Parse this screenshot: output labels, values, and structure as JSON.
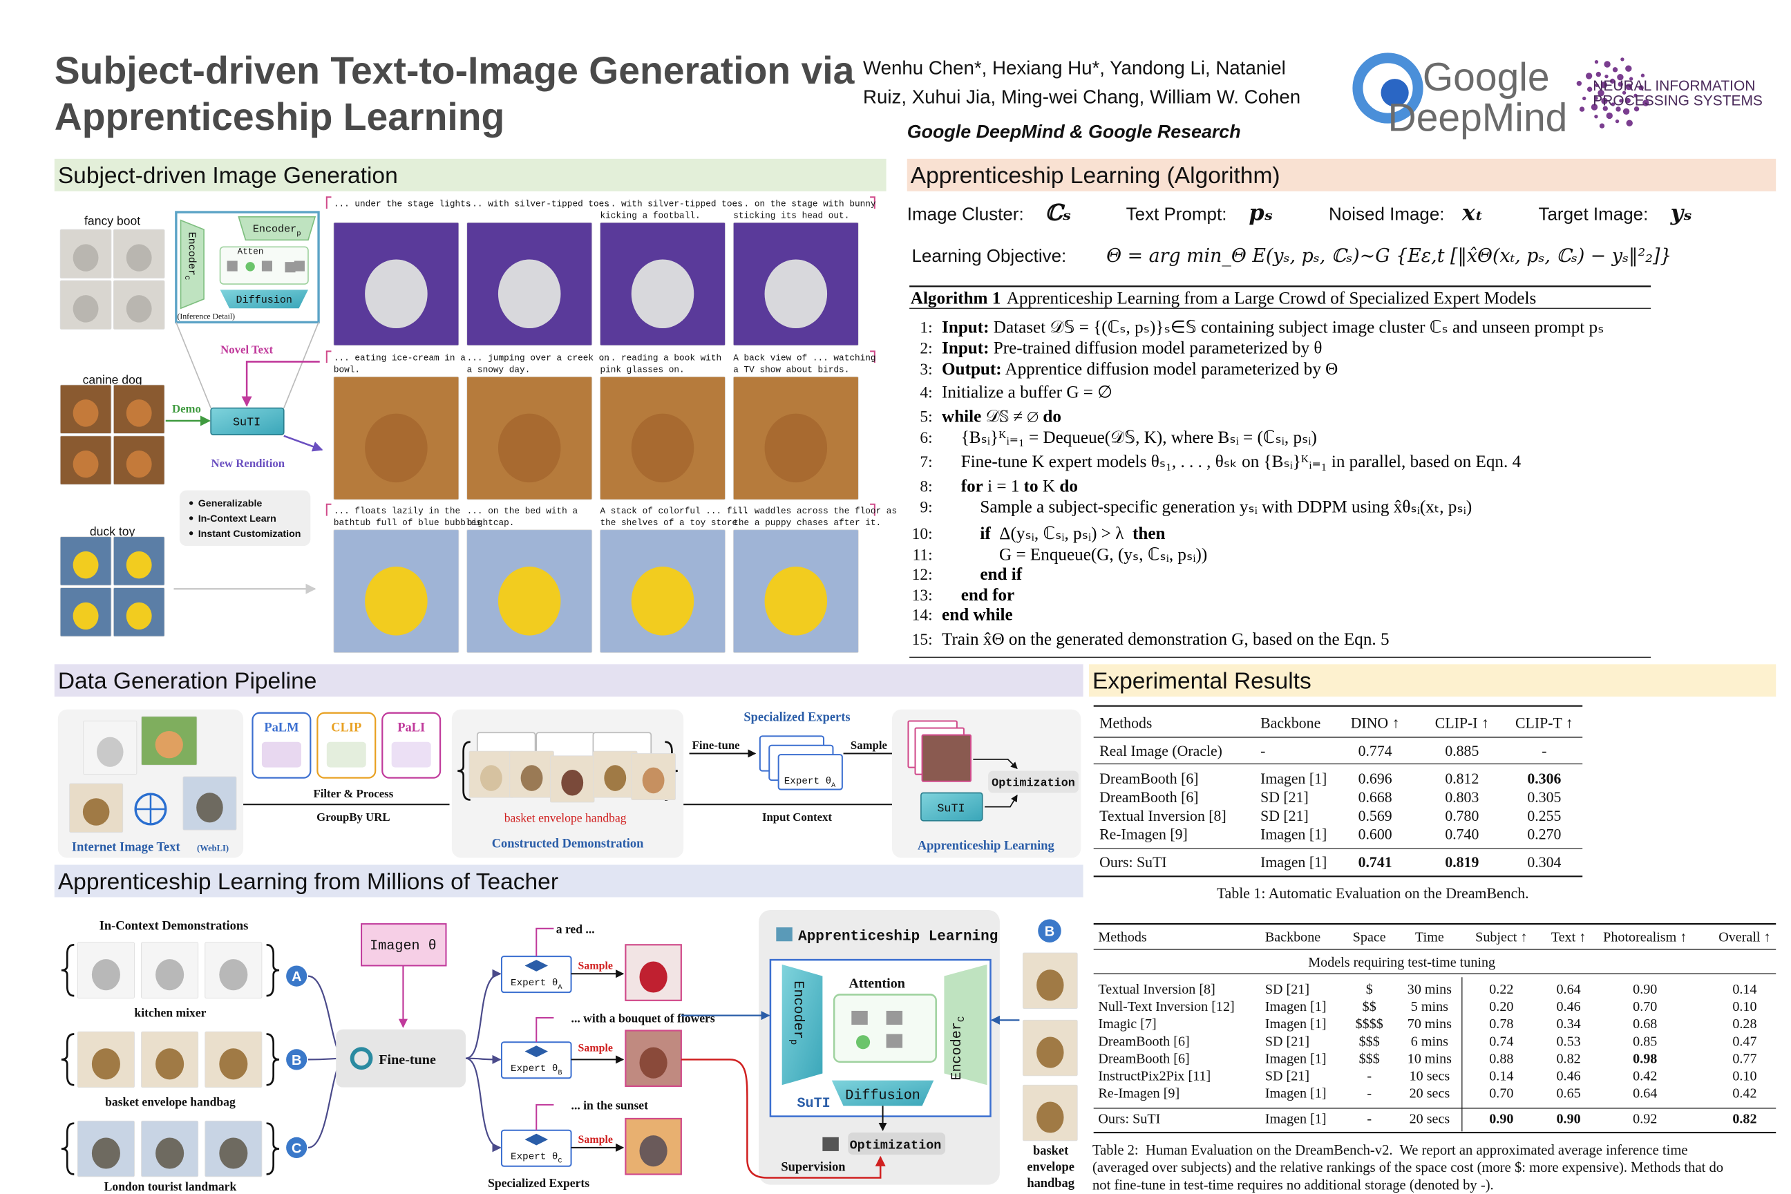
{
  "header": {
    "title": [
      "Subject-driven Text-to-Image Generation via",
      "Apprenticeship Learning"
    ],
    "authors": [
      "Wenhu Chen*, Hexiang Hu*, Yandong Li, Nataniel",
      "Ruiz, Xuhui Jia, Ming-wei Chang, William W. Cohen"
    ],
    "affiliation": "Google DeepMind & Google Research",
    "logos": {
      "google": "Google",
      "deepmind": "DeepMind",
      "neurips": [
        "NEURAL INFORMATION",
        "PROCESSING SYSTEMS"
      ]
    }
  },
  "subject_generation": {
    "title": "Subject-driven Image Generation",
    "subjects": [
      "fancy boot",
      "canine dog",
      "duck toy"
    ],
    "encoder_p": {
      "text": "Encoder",
      "sub": "p"
    },
    "encoder_c": {
      "text": "Encoder",
      "sub": "C"
    },
    "atten": "Atten",
    "diffusion": "Diffusion",
    "inference_detail": "(Inference Detail)",
    "novel_text": "Novel Text",
    "demo": "Demo",
    "model": "SuTI",
    "new_rendition": "New Rendition",
    "features": [
      "Generalizable",
      "In-Context Learn",
      "Instant Customization"
    ],
    "captions": [
      [
        [
          "... under the stage lights"
        ],
        [
          "... with silver-tipped toes"
        ],
        [
          "... with silver-tipped toes",
          "kicking a football."
        ],
        [
          "... on the stage with bunny",
          "sticking its head out."
        ]
      ],
      [
        [
          "... eating ice-cream in a",
          "bowl."
        ],
        [
          "... jumping over a creek on",
          "a snowy day."
        ],
        [
          "... reading a book with",
          "pink glasses on."
        ],
        [
          "A back view of ... watching",
          "a TV show about birds."
        ]
      ],
      [
        [
          "... floats lazily in the",
          "bathtub full of blue bubbles."
        ],
        [
          "... on the bed with a",
          "nightcap."
        ],
        [
          "A stack of colorful ... fill",
          "the shelves of a toy store."
        ],
        [
          "... waddles across the floor as",
          "the a puppy chases after it."
        ]
      ]
    ]
  },
  "algorithm": {
    "title": "Apprenticeship Learning (Algorithm)",
    "notation": [
      {
        "label": "Image Cluster:",
        "symbol": "ℂₛ"
      },
      {
        "label": "Text Prompt:",
        "symbol": "pₛ"
      },
      {
        "label": "Noised Image:",
        "symbol": "xₜ"
      },
      {
        "label": "Target Image:",
        "symbol": "yₛ"
      }
    ],
    "objective_label": "Learning Objective:",
    "objective": "Θ = arg min_Θ E(yₛ, pₛ, ℂₛ)∼G {Eε,t [‖x̂Θ(xₜ, pₛ, ℂₛ) − yₛ‖²₂]}",
    "caption_label": "Algorithm 1",
    "caption": "Apprenticeship Learning from a Large Crowd of Specialized Expert Models",
    "lines": [
      {
        "num": "1:",
        "indent": 0,
        "segments": [
          {
            "text": "Input:",
            "bold": true
          },
          {
            "text": " Dataset 𝒟𝕊 = {(ℂₛ, pₛ)}ₛ∈𝕊 containing subject image cluster ℂₛ and unseen prompt pₛ",
            "bold": false
          }
        ]
      },
      {
        "num": "2:",
        "indent": 0,
        "segments": [
          {
            "text": "Input:",
            "bold": true
          },
          {
            "text": " Pre-trained diffusion model parameterized by θ",
            "bold": false
          }
        ]
      },
      {
        "num": "3:",
        "indent": 0,
        "segments": [
          {
            "text": "Output:",
            "bold": true
          },
          {
            "text": " Apprentice diffusion model parameterized by Θ",
            "bold": false
          }
        ]
      },
      {
        "num": "4:",
        "indent": 0,
        "segments": [
          {
            "text": "Initialize a buffer G = ∅",
            "bold": false
          }
        ]
      },
      {
        "num": "5:",
        "indent": 0,
        "segments": [
          {
            "text": "while",
            "bold": true
          },
          {
            "text": " 𝒟𝕊 ≠ ∅ ",
            "bold": false
          },
          {
            "text": "do",
            "bold": true
          }
        ]
      },
      {
        "num": "6:",
        "indent": 1,
        "segments": [
          {
            "text": "{Bₛᵢ}ᴷᵢ₌₁ = Dequeue(𝒟𝕊, K), where Bₛᵢ = (ℂₛᵢ, pₛᵢ)",
            "bold": false
          }
        ]
      },
      {
        "num": "7:",
        "indent": 1,
        "segments": [
          {
            "text": "Fine-tune K expert models θₛ₁, . . . , θₛₖ on {Bₛᵢ}ᴷᵢ₌₁ in parallel, based on Eqn. 4",
            "bold": false
          }
        ]
      },
      {
        "num": "8:",
        "indent": 1,
        "segments": [
          {
            "text": "for",
            "bold": true
          },
          {
            "text": " i = 1 ",
            "bold": false
          },
          {
            "text": "to",
            "bold": true
          },
          {
            "text": " K ",
            "bold": false
          },
          {
            "text": "do",
            "bold": true
          }
        ]
      },
      {
        "num": "9:",
        "indent": 2,
        "segments": [
          {
            "text": "Sample a subject-specific generation yₛᵢ with DDPM using x̂θₛᵢ(xₜ, pₛᵢ)",
            "bold": false
          }
        ]
      },
      {
        "num": "10:",
        "indent": 2,
        "segments": [
          {
            "text": "if",
            "bold": true
          },
          {
            "text": "  Δ(yₛᵢ, ℂₛᵢ, pₛᵢ) > λ  ",
            "bold": false
          },
          {
            "text": "then",
            "bold": true
          }
        ]
      },
      {
        "num": "11:",
        "indent": 3,
        "segments": [
          {
            "text": "G = Enqueue(G, (yₛ, ℂₛᵢ, pₛᵢ))",
            "bold": false
          }
        ]
      },
      {
        "num": "12:",
        "indent": 2,
        "segments": [
          {
            "text": "end if",
            "bold": true
          }
        ]
      },
      {
        "num": "13:",
        "indent": 1,
        "segments": [
          {
            "text": "end for",
            "bold": true
          }
        ]
      },
      {
        "num": "14:",
        "indent": 0,
        "segments": [
          {
            "text": "end while",
            "bold": true
          }
        ]
      },
      {
        "num": "15:",
        "indent": 0,
        "segments": [
          {
            "text": "Train x̂Θ on the generated demonstration G, based on the Eqn. 5",
            "bold": false
          }
        ]
      }
    ]
  },
  "pipeline": {
    "title": "Data Generation Pipeline",
    "models": [
      "PaLM",
      "CLIP",
      "PaLI"
    ],
    "filter": "Filter & Process",
    "groupby": "GroupBy URL",
    "source": "Internet Image Text",
    "source_note": "(WebLI)",
    "demo_subject": "basket envelope handbag",
    "demo_title": "Constructed Demonstration",
    "experts_title": "Specialized Experts",
    "finetune": "Fine-tune",
    "sample": "Sample",
    "expert": {
      "text": "Expert θ",
      "sub": "A"
    },
    "input_context": "Input Context",
    "model": "SuTI",
    "optimization": "Optimization",
    "learner_title": "Apprenticeship Learning"
  },
  "teacher": {
    "title": "Apprenticeship Learning from Millions of Teacher",
    "demos_title": "In-Context Demonstrations",
    "subjects": [
      "kitchen mixer",
      "basket envelope handbag",
      "London tourist landmark"
    ],
    "letters": [
      "A",
      "B",
      "C"
    ],
    "imagen": "Imagen θ",
    "finetune": "Fine-tune",
    "prompts": [
      "a red ...",
      "... with a bouquet of flowers",
      "... in the sunset"
    ],
    "sample": [
      "Sample",
      "Sample",
      "Sample"
    ],
    "experts": [
      {
        "text": "Expert θ",
        "sub": "A"
      },
      {
        "text": "Expert θ",
        "sub": "B"
      },
      {
        "text": "Expert θ",
        "sub": "C"
      }
    ],
    "experts_title": "Specialized Experts",
    "panel_title": "Apprenticeship Learning",
    "attention": "Attention",
    "encoder_p": {
      "text": "Encoder",
      "sub": "p"
    },
    "encoder_c": {
      "text": "Encoder",
      "sub": "C"
    },
    "diffusion": "Diffusion",
    "model": "SuTI",
    "optimization": "Optimization",
    "supervision": "Supervision",
    "query_letter": "B",
    "query_label": [
      "basket",
      "envelope",
      "handbag"
    ]
  },
  "results": {
    "title": "Experimental Results",
    "table1": {
      "header": [
        "Methods",
        "Backbone",
        "DINO ↑",
        "CLIP-I ↑",
        "CLIP-T ↑"
      ],
      "rows": [
        [
          "Real Image (Oracle)",
          "-",
          "0.774",
          "0.885",
          "-"
        ],
        [
          "DreamBooth [6]",
          "Imagen [1]",
          "0.696",
          "0.812",
          "0.306"
        ],
        [
          "DreamBooth [6]",
          "SD [21]",
          "0.668",
          "0.803",
          "0.305"
        ],
        [
          "Textual Inversion [8]",
          "SD [21]",
          "0.569",
          "0.780",
          "0.255"
        ],
        [
          "Re-Imagen [9]",
          "Imagen [1]",
          "0.600",
          "0.740",
          "0.270"
        ],
        [
          "Ours: SuTI",
          "Imagen [1]",
          "0.741",
          "0.819",
          "0.304"
        ]
      ],
      "bold": [
        [
          1,
          4
        ],
        [
          5,
          2
        ],
        [
          5,
          3
        ]
      ],
      "caption": "Table 1: Automatic Evaluation on the DreamBench."
    },
    "table2": {
      "header": [
        "Methods",
        "Backbone",
        "Space",
        "Time",
        "Subject ↑",
        "Text ↑",
        "Photorealism ↑",
        "Overall ↑"
      ],
      "group": "Models requiring test-time tuning",
      "rows": [
        [
          "Textual Inversion [8]",
          "SD [21]",
          "$",
          "30 mins",
          "0.22",
          "0.64",
          "0.90",
          "0.14"
        ],
        [
          "Null-Text Inversion [12]",
          "Imagen [1]",
          "$$",
          "5 mins",
          "0.20",
          "0.46",
          "0.70",
          "0.10"
        ],
        [
          "Imagic [7]",
          "Imagen [1]",
          "$$$$",
          "70 mins",
          "0.78",
          "0.34",
          "0.68",
          "0.28"
        ],
        [
          "DreamBooth [6]",
          "SD [21]",
          "$$$",
          "6 mins",
          "0.74",
          "0.53",
          "0.85",
          "0.47"
        ],
        [
          "DreamBooth [6]",
          "Imagen [1]",
          "$$$",
          "10 mins",
          "0.88",
          "0.82",
          "0.98",
          "0.77"
        ],
        [
          "InstructPix2Pix [11]",
          "SD [21]",
          "-",
          "10 secs",
          "0.14",
          "0.46",
          "0.42",
          "0.10"
        ],
        [
          "Re-Imagen [9]",
          "Imagen [1]",
          "-",
          "20 secs",
          "0.70",
          "0.65",
          "0.64",
          "0.42"
        ],
        [
          "Ours: SuTI",
          "Imagen [1]",
          "-",
          "20 secs",
          "0.90",
          "0.90",
          "0.92",
          "0.82"
        ]
      ],
      "bold": [
        [
          4,
          6
        ],
        [
          7,
          4
        ],
        [
          7,
          5
        ],
        [
          7,
          7
        ]
      ],
      "caption": [
        "Table 2:  Human Evaluation on the DreamBench-v2.  We report an approximated average inference time",
        "(averaged over subjects) and the relative rankings of the space cost (more $: more expensive). Methods that do",
        "not fine-tune in test-time requires no additional storage (denoted by -)."
      ]
    }
  }
}
